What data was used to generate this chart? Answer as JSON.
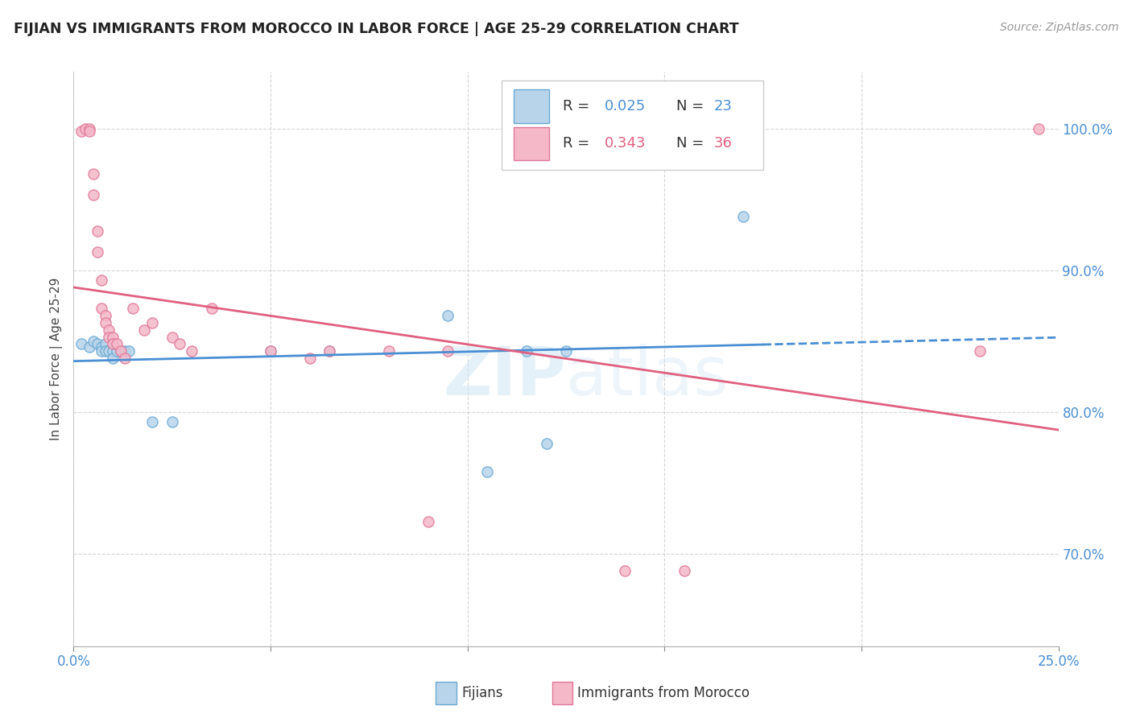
{
  "title": "FIJIAN VS IMMIGRANTS FROM MOROCCO IN LABOR FORCE | AGE 25-29 CORRELATION CHART",
  "source": "Source: ZipAtlas.com",
  "ylabel": "In Labor Force | Age 25-29",
  "ylabel_right_ticks": [
    "70.0%",
    "80.0%",
    "90.0%",
    "100.0%"
  ],
  "ylabel_right_values": [
    0.7,
    0.8,
    0.9,
    1.0
  ],
  "xlim": [
    0.0,
    0.25
  ],
  "ylim": [
    0.635,
    1.04
  ],
  "watermark": "ZIPatlas",
  "fijian_color": "#b8d4ea",
  "fijian_edge": "#6aaad4",
  "morocco_color": "#f4b8c8",
  "morocco_edge": "#e07898",
  "line_fijian": "#4a8fd4",
  "line_morocco": "#e06080",
  "fijians_x": [
    0.002,
    0.004,
    0.005,
    0.006,
    0.007,
    0.007,
    0.008,
    0.008,
    0.009,
    0.01,
    0.01,
    0.011,
    0.012,
    0.013,
    0.014,
    0.02,
    0.025,
    0.05,
    0.065,
    0.095,
    0.105,
    0.115,
    0.12,
    0.125,
    0.17
  ],
  "fijians_y": [
    0.848,
    0.846,
    0.85,
    0.848,
    0.846,
    0.843,
    0.848,
    0.843,
    0.843,
    0.843,
    0.838,
    0.843,
    0.843,
    0.843,
    0.843,
    0.793,
    0.793,
    0.843,
    0.843,
    0.868,
    0.758,
    0.843,
    0.778,
    0.843,
    0.938
  ],
  "morocco_x": [
    0.002,
    0.003,
    0.004,
    0.004,
    0.005,
    0.005,
    0.006,
    0.006,
    0.007,
    0.007,
    0.008,
    0.008,
    0.009,
    0.009,
    0.01,
    0.01,
    0.011,
    0.012,
    0.013,
    0.015,
    0.018,
    0.02,
    0.025,
    0.027,
    0.03,
    0.035,
    0.05,
    0.06,
    0.065,
    0.08,
    0.09,
    0.095,
    0.14,
    0.155,
    0.23,
    0.245
  ],
  "morocco_y": [
    0.998,
    1.0,
    1.0,
    0.998,
    0.968,
    0.953,
    0.928,
    0.913,
    0.893,
    0.873,
    0.868,
    0.863,
    0.858,
    0.853,
    0.853,
    0.848,
    0.848,
    0.843,
    0.838,
    0.873,
    0.858,
    0.863,
    0.853,
    0.848,
    0.843,
    0.873,
    0.843,
    0.838,
    0.843,
    0.843,
    0.723,
    0.843,
    0.688,
    0.688,
    0.843,
    1.0
  ]
}
